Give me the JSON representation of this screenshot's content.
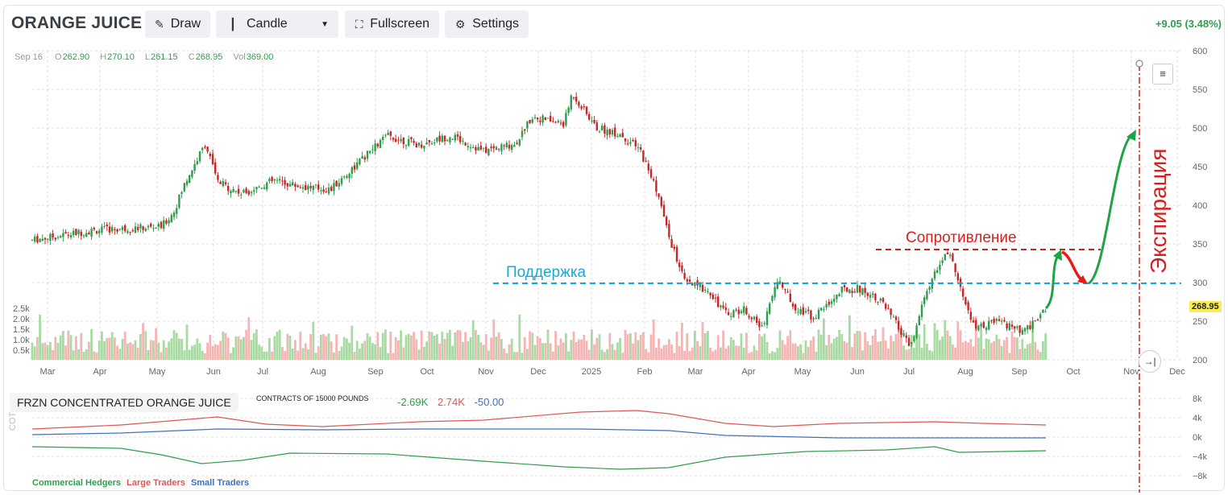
{
  "header": {
    "title": "ORANGE JUICE",
    "change": "+9.05 (3.48%)",
    "buttons": {
      "draw": "Draw",
      "chart_type": "Candle",
      "fullscreen": "Fullscreen",
      "settings": "Settings"
    }
  },
  "ohlc": {
    "date": "Sep 16",
    "o_label": "O",
    "o": "262.90",
    "h_label": "H",
    "h": "270.10",
    "l_label": "L",
    "l": "261.15",
    "c_label": "C",
    "c": "268.95",
    "vol_label": "Vol",
    "vol": "369.00"
  },
  "price_axis": {
    "ticks": [
      "600",
      "550",
      "500",
      "450",
      "400",
      "350",
      "300",
      "250",
      "200"
    ]
  },
  "volume_axis": {
    "ticks": [
      "2.5k",
      "2.0k",
      "1.5k",
      "1.0k",
      "0.5k"
    ]
  },
  "time_axis": {
    "ticks": [
      "Mar",
      "Apr",
      "May",
      "Jun",
      "Jul",
      "Aug",
      "Sep",
      "Oct",
      "Nov",
      "Dec",
      "2025",
      "Feb",
      "Mar",
      "Apr",
      "May",
      "Jun",
      "Jul",
      "Aug",
      "Sep",
      "Oct",
      "Nov",
      "Dec"
    ]
  },
  "current_price": "268.95",
  "annotations": {
    "support": "Поддержка",
    "resistance": "Сопротивление",
    "expiration": "Экспирация"
  },
  "cot": {
    "title": "FRZN CONCENTRATED ORANGE JUICE",
    "subtitle": "CONTRACTS OF 15000 POUNDS",
    "values": {
      "commercial": "-2.69K",
      "large": "2.74K",
      "small": "-50.00"
    },
    "axis_ticks": [
      "8k",
      "4k",
      "0k",
      "−4k",
      "−8k"
    ],
    "side_label": "COT",
    "legend": {
      "commercial": "Commercial Hedgers",
      "large": "Large Traders",
      "small": "Small Traders"
    }
  },
  "colors": {
    "up": "#2e9e4d",
    "down": "#c62828",
    "support": "#1aa7d6",
    "resistance": "#d62020",
    "commercial": "#2e9e4d",
    "large": "#e05555",
    "small": "#3f6fc2"
  },
  "chart_data": {
    "type": "candlestick",
    "x": [
      "2024-03",
      "2024-04",
      "2024-05",
      "2024-06",
      "2024-07",
      "2024-08",
      "2024-09",
      "2024-10",
      "2024-11",
      "2024-12",
      "2025-01",
      "2025-02",
      "2025-03",
      "2025-04",
      "2025-05",
      "2025-06",
      "2025-07",
      "2025-08",
      "2025-09"
    ],
    "close": [
      365,
      368,
      375,
      430,
      425,
      430,
      480,
      470,
      480,
      520,
      505,
      470,
      300,
      260,
      265,
      290,
      300,
      240,
      269
    ],
    "support_level": 300,
    "resistance_level": 345,
    "ylim": [
      200,
      600
    ]
  }
}
